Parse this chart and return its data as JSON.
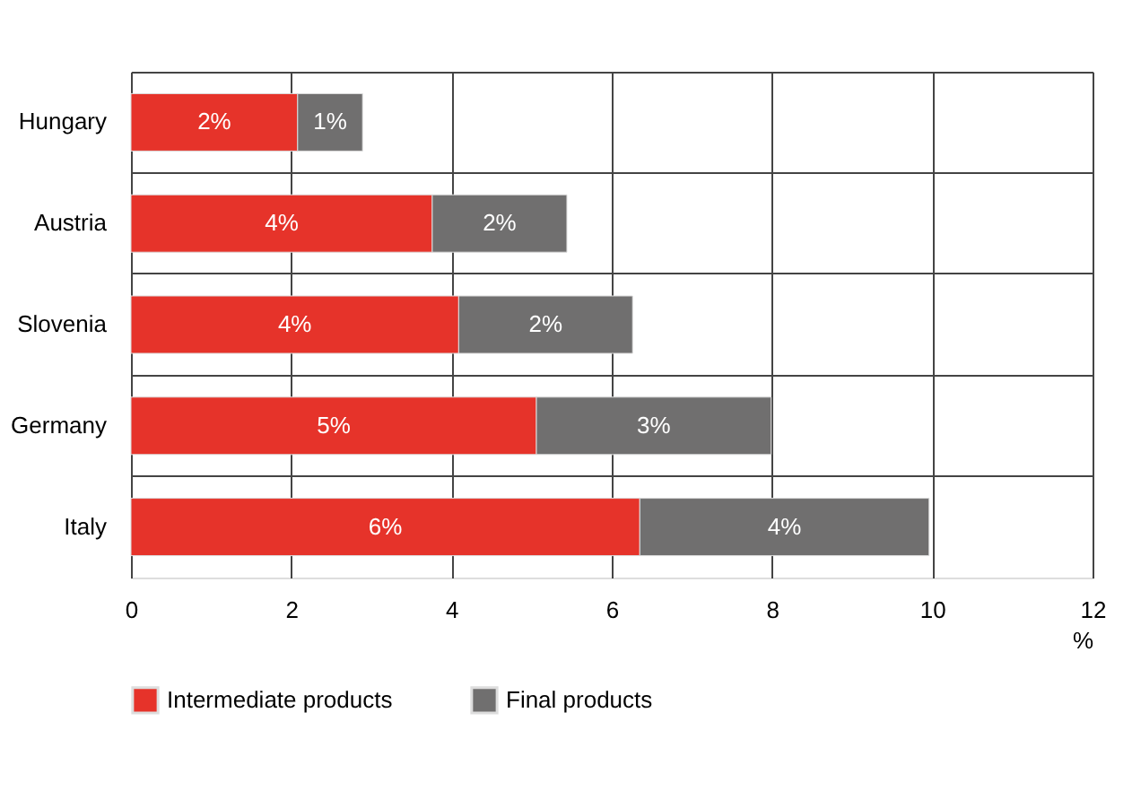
{
  "chart_data": {
    "type": "bar",
    "orientation": "horizontal",
    "stacked": true,
    "categories": [
      "Hungary",
      "Austria",
      "Slovenia",
      "Germany",
      "Italy"
    ],
    "series": [
      {
        "name": "Intermediate products",
        "color": "#e6332a",
        "values": [
          2.08,
          3.76,
          4.09,
          5.06,
          6.35
        ],
        "value_labels": [
          "2%",
          "4%",
          "4%",
          "5%",
          "6%"
        ]
      },
      {
        "name": "Final products",
        "color": "#706f6f",
        "values": [
          0.81,
          1.68,
          2.17,
          2.93,
          3.61
        ],
        "value_labels": [
          "1%",
          "2%",
          "2%",
          "3%",
          "4%"
        ]
      }
    ],
    "xlim": [
      0,
      12
    ],
    "xticks": [
      0,
      2,
      4,
      6,
      8,
      10,
      12
    ],
    "xlabel": "%",
    "grid": true,
    "legend": "bottom"
  }
}
